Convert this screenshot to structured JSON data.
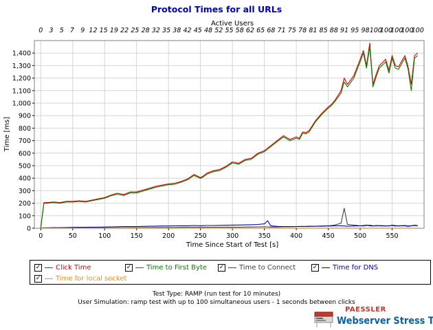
{
  "chart_data": {
    "type": "line",
    "title": "Protocol Times for all URLs",
    "top_axis_label": "Active Users",
    "top_tick_labels": [
      "0",
      "3",
      "5",
      "7",
      "9",
      "12",
      "15",
      "19",
      "22",
      "25",
      "28",
      "32",
      "35",
      "38",
      "42",
      "45",
      "48",
      "52",
      "55",
      "58",
      "62",
      "65",
      "68",
      "71",
      "75",
      "78",
      "81",
      "85",
      "88",
      "91",
      "95",
      "98",
      "100",
      "100",
      "100",
      "100",
      "100"
    ],
    "xlabel": "Time Since Start of Test [s]",
    "ylabel": "Time [ms]",
    "xlim": [
      -10,
      600
    ],
    "ylim": [
      0,
      1500
    ],
    "x_ticks": [
      0,
      50,
      100,
      150,
      200,
      250,
      300,
      350,
      400,
      450,
      500,
      550
    ],
    "y_ticks": [
      0,
      100,
      200,
      300,
      400,
      500,
      600,
      700,
      800,
      900,
      1000,
      1100,
      1200,
      1300,
      1400
    ],
    "y_tick_labels": [
      "0",
      "100",
      "200",
      "300",
      "400",
      "500",
      "600",
      "700",
      "800",
      "900",
      "1,000",
      "1,100",
      "1,200",
      "1,300",
      "1,400"
    ],
    "x": [
      0,
      5,
      10,
      20,
      30,
      40,
      50,
      60,
      70,
      80,
      90,
      100,
      110,
      120,
      130,
      140,
      150,
      160,
      170,
      180,
      190,
      200,
      210,
      220,
      230,
      240,
      250,
      255,
      260,
      270,
      280,
      290,
      300,
      310,
      320,
      330,
      340,
      350,
      355,
      360,
      370,
      380,
      390,
      400,
      405,
      410,
      415,
      420,
      430,
      440,
      450,
      455,
      460,
      470,
      475,
      480,
      490,
      500,
      505,
      510,
      515,
      520,
      525,
      530,
      540,
      545,
      550,
      555,
      560,
      570,
      575,
      580,
      585,
      590
    ],
    "series": [
      {
        "name": "Click Time",
        "color": "#e00000",
        "values": [
          5,
          205,
          205,
          210,
          205,
          215,
          215,
          220,
          215,
          225,
          235,
          245,
          265,
          280,
          270,
          290,
          290,
          305,
          320,
          335,
          345,
          355,
          360,
          375,
          395,
          430,
          405,
          420,
          440,
          460,
          470,
          495,
          530,
          520,
          550,
          560,
          600,
          620,
          640,
          660,
          700,
          740,
          710,
          730,
          720,
          770,
          765,
          780,
          860,
          920,
          970,
          990,
          1020,
          1100,
          1200,
          1150,
          1220,
          1350,
          1420,
          1300,
          1480,
          1150,
          1230,
          1300,
          1350,
          1260,
          1380,
          1300,
          1290,
          1380,
          1290,
          1150,
          1380,
          1400
        ]
      },
      {
        "name": "Time to First Byte",
        "color": "#008000",
        "values": [
          5,
          200,
          200,
          205,
          200,
          210,
          210,
          215,
          210,
          220,
          230,
          240,
          260,
          272,
          262,
          282,
          282,
          298,
          312,
          328,
          338,
          348,
          352,
          368,
          388,
          422,
          398,
          412,
          432,
          452,
          462,
          488,
          522,
          512,
          542,
          552,
          592,
          612,
          632,
          652,
          692,
          730,
          700,
          720,
          710,
          760,
          755,
          770,
          850,
          910,
          960,
          980,
          1010,
          1080,
          1170,
          1130,
          1200,
          1330,
          1400,
          1280,
          1450,
          1130,
          1210,
          1280,
          1330,
          1240,
          1360,
          1280,
          1270,
          1360,
          1270,
          1100,
          1360,
          1380
        ]
      },
      {
        "name": "Time to Connect",
        "color": "#404040",
        "values": [
          0,
          2,
          2,
          2,
          2,
          3,
          3,
          3,
          3,
          3,
          3,
          4,
          4,
          4,
          4,
          5,
          5,
          5,
          5,
          6,
          6,
          6,
          6,
          7,
          7,
          8,
          7,
          7,
          8,
          8,
          8,
          9,
          9,
          9,
          10,
          10,
          11,
          12,
          11,
          10,
          10,
          12,
          12,
          14,
          15,
          14,
          15,
          16,
          16,
          18,
          20,
          22,
          25,
          40,
          160,
          30,
          25,
          20,
          18,
          22,
          25,
          20,
          18,
          22,
          20,
          18,
          25,
          22,
          18,
          20,
          15,
          20,
          25,
          22
        ]
      },
      {
        "name": "Time for DNS",
        "color": "#0000b0",
        "values": [
          2,
          4,
          4,
          5,
          5,
          6,
          7,
          8,
          8,
          9,
          9,
          10,
          11,
          12,
          13,
          14,
          14,
          15,
          16,
          17,
          18,
          18,
          19,
          20,
          20,
          22,
          20,
          21,
          22,
          22,
          23,
          24,
          25,
          26,
          27,
          28,
          30,
          35,
          60,
          20,
          15,
          14,
          14,
          13,
          14,
          15,
          14,
          15,
          16,
          16,
          18,
          18,
          20,
          20,
          18,
          16,
          18,
          20,
          22,
          25,
          20,
          18,
          22,
          20,
          18,
          20,
          22,
          18,
          20,
          22,
          18,
          20,
          22,
          20
        ]
      },
      {
        "name": "Time for local socket",
        "color": "#ff8c00",
        "values": [
          1,
          1,
          1,
          1,
          1,
          1,
          1,
          1,
          1,
          1,
          1,
          1,
          1,
          1,
          1,
          1,
          1,
          1,
          1,
          1,
          1,
          1,
          1,
          1,
          1,
          1,
          1,
          1,
          1,
          1,
          1,
          1,
          1,
          1,
          1,
          1,
          1,
          1,
          1,
          1,
          1,
          1,
          1,
          1,
          1,
          1,
          1,
          1,
          1,
          1,
          1,
          1,
          1,
          1,
          1,
          1,
          1,
          1,
          1,
          1,
          1,
          1,
          1,
          1,
          1,
          1,
          1,
          1,
          1,
          1,
          1,
          1,
          1,
          1
        ]
      }
    ],
    "legend_placement": "bottom",
    "grid": true
  },
  "legend": {
    "items": [
      {
        "label": "Click Time",
        "checked": "✓",
        "color": "#e00000"
      },
      {
        "label": "Time to First Byte",
        "checked": "✓",
        "color": "#008000"
      },
      {
        "label": "Time to Connect",
        "checked": "✓",
        "color": "#404040"
      },
      {
        "label": "Time for DNS",
        "checked": "✓",
        "color": "#0000b0"
      },
      {
        "label": "Time for local socket",
        "checked": "✓",
        "color": "#ff8c00"
      }
    ]
  },
  "notes": {
    "test_type": "Test Type: RAMP (run test for 10 minutes)",
    "user_sim": "User Simulation: ramp test with up to 100 simultaneous users - 1 seconds between clicks"
  },
  "logo": {
    "brand": "PAESSLER",
    "product": "Webserver Stress Tool"
  }
}
